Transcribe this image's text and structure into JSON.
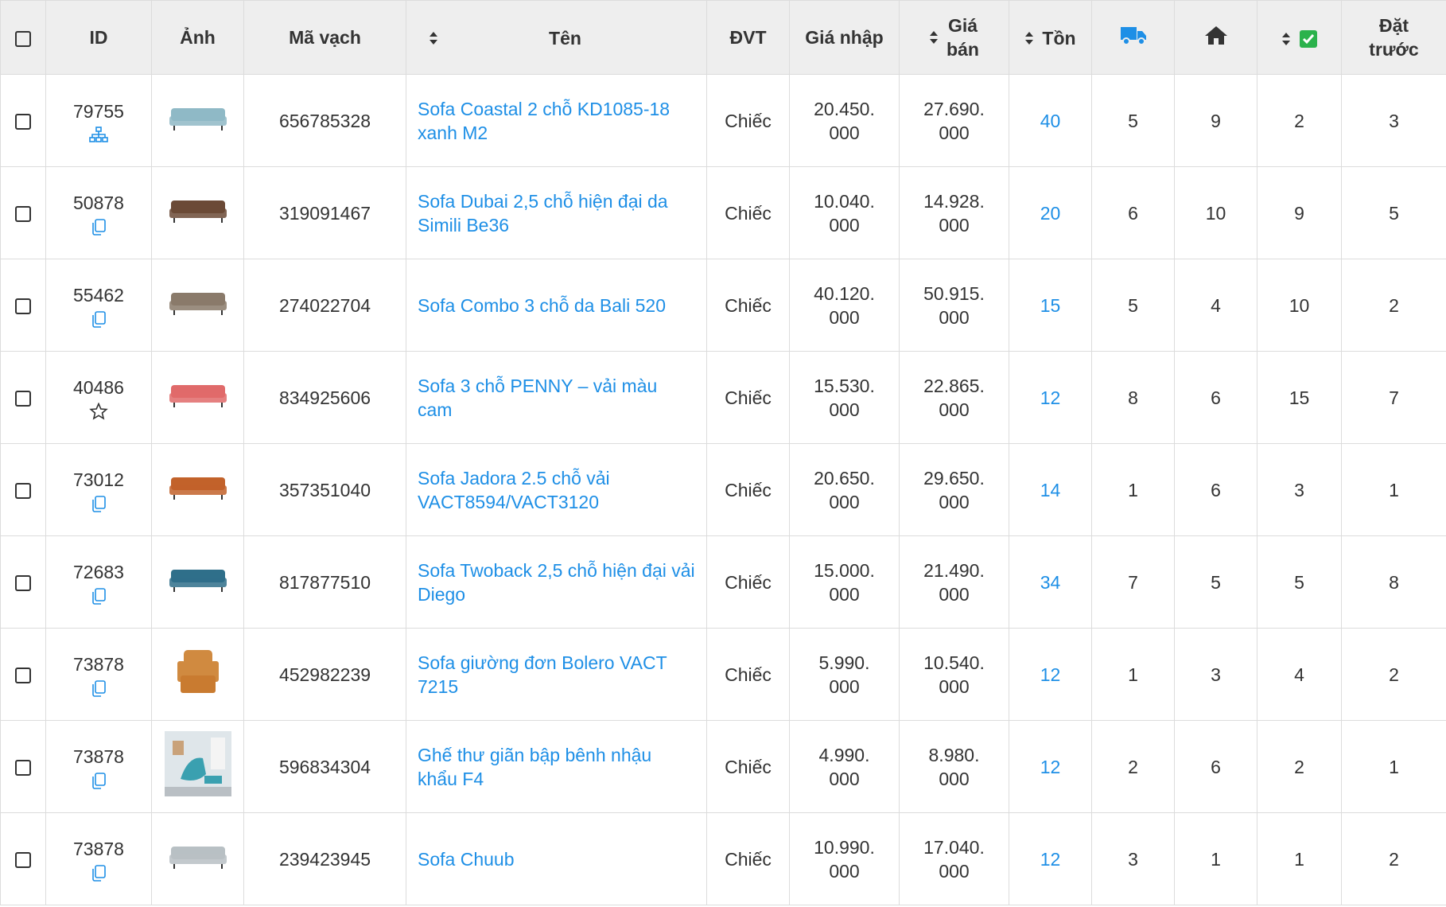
{
  "table": {
    "headers": [
      "ID",
      "Ảnh",
      "Mã vạch",
      "Tên",
      "ĐVT",
      "Giá nhập",
      "Giá\nbán",
      "Tồn",
      "Đặt\ntrước"
    ],
    "rows": [
      {
        "id": "79755",
        "barcode": "656785328",
        "name": "Sofa Coastal 2 chỗ KD1085-18 xanh M2",
        "unit": "Chiếc",
        "cost": "20.450.\n000",
        "price": "27.690.\n000",
        "stock": "40",
        "ship": "5",
        "home": "9",
        "done": "2",
        "pre": "3"
      },
      {
        "id": "50878",
        "barcode": "319091467",
        "name": "Sofa Dubai 2,5 chỗ hiện đại da Simili Be36",
        "unit": "Chiếc",
        "cost": "10.040.\n000",
        "price": "14.928.\n000",
        "stock": "20",
        "ship": "6",
        "home": "10",
        "done": "9",
        "pre": "5"
      },
      {
        "id": "55462",
        "barcode": "274022704",
        "name": "Sofa Combo 3 chỗ da Bali 520",
        "unit": "Chiếc",
        "cost": "40.120.\n000",
        "price": "50.915.\n000",
        "stock": "15",
        "ship": "5",
        "home": "4",
        "done": "10",
        "pre": "2"
      },
      {
        "id": "40486",
        "barcode": "834925606",
        "name": "Sofa 3 chỗ PENNY – vải màu cam",
        "unit": "Chiếc",
        "cost": "15.530.\n000",
        "price": "22.865.\n000",
        "stock": "12",
        "ship": "8",
        "home": "6",
        "done": "15",
        "pre": "7"
      },
      {
        "id": "73012",
        "barcode": "357351040",
        "name": "Sofa Jadora 2.5 chỗ vải VACT8594/VACT3120",
        "unit": "Chiếc",
        "cost": "20.650.\n000",
        "price": "29.650.\n000",
        "stock": "14",
        "ship": "1",
        "home": "6",
        "done": "3",
        "pre": "1"
      },
      {
        "id": "72683",
        "barcode": "817877510",
        "name": "Sofa Twoback 2,5 chỗ hiện đại vải Diego",
        "unit": "Chiếc",
        "cost": "15.000.\n000",
        "price": "21.490.\n000",
        "stock": "34",
        "ship": "7",
        "home": "5",
        "done": "5",
        "pre": "8"
      },
      {
        "id": "73878",
        "barcode": "452982239",
        "name": "Sofa giường đơn Bolero VACT 7215",
        "unit": "Chiếc",
        "cost": "5.990.\n000",
        "price": "10.540.\n000",
        "stock": "12",
        "ship": "1",
        "home": "3",
        "done": "4",
        "pre": "2"
      },
      {
        "id": "73878",
        "barcode": "596834304",
        "name": "Ghế thư giãn bập bênh nhậu khẩu F4",
        "unit": "Chiếc",
        "cost": "4.990.\n000",
        "price": "8.980.\n000",
        "stock": "12",
        "ship": "2",
        "home": "6",
        "done": "2",
        "pre": "1"
      },
      {
        "id": "73878",
        "barcode": "239423945",
        "name": "Sofa Chuub",
        "unit": "Chiếc",
        "cost": "10.990.\n000",
        "price": "17.040.\n000",
        "stock": "12",
        "ship": "3",
        "home": "1",
        "done": "1",
        "pre": "2"
      }
    ]
  }
}
